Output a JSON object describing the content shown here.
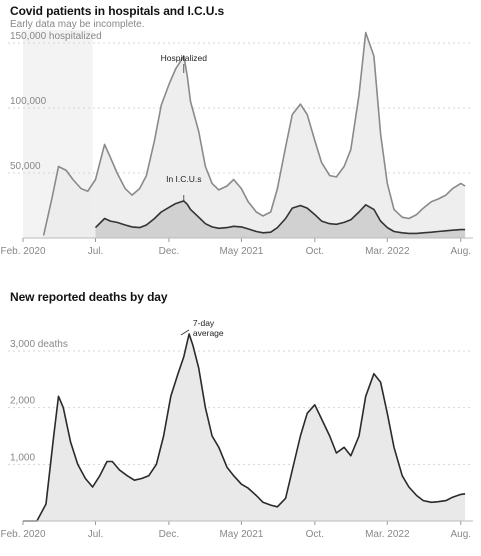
{
  "chart_data": [
    {
      "type": "area",
      "title": "Covid patients in hospitals and I.C.U.s",
      "subtitle": "Early data may be incomplete.",
      "xticks": [
        "Feb. 2020",
        "Jul.",
        "Dec.",
        "May 2021",
        "Oct.",
        "Mar. 2022",
        "Aug."
      ],
      "yticks": [
        "50,000",
        "100,000",
        "150,000 hospitalized"
      ],
      "ylim": [
        0,
        160000
      ],
      "grid": true,
      "annotations": [
        "Hospitalized",
        "In I.C.U.s"
      ],
      "x": [
        "2020-03-15",
        "2020-04-01",
        "2020-04-15",
        "2020-05-01",
        "2020-05-15",
        "2020-06-01",
        "2020-06-15",
        "2020-07-01",
        "2020-07-20",
        "2020-08-01",
        "2020-08-15",
        "2020-09-01",
        "2020-09-15",
        "2020-10-01",
        "2020-10-15",
        "2020-11-01",
        "2020-11-15",
        "2020-12-01",
        "2020-12-15",
        "2021-01-01",
        "2021-01-08",
        "2021-01-15",
        "2021-02-01",
        "2021-02-15",
        "2021-03-01",
        "2021-03-15",
        "2021-04-01",
        "2021-04-15",
        "2021-05-01",
        "2021-05-15",
        "2021-06-01",
        "2021-06-15",
        "2021-07-01",
        "2021-07-15",
        "2021-08-01",
        "2021-08-15",
        "2021-09-01",
        "2021-09-15",
        "2021-10-01",
        "2021-10-15",
        "2021-11-01",
        "2021-11-15",
        "2021-12-01",
        "2021-12-15",
        "2022-01-01",
        "2022-01-15",
        "2022-02-01",
        "2022-02-15",
        "2022-03-01",
        "2022-03-15",
        "2022-04-01",
        "2022-04-15",
        "2022-05-01",
        "2022-05-15",
        "2022-06-01",
        "2022-06-15",
        "2022-07-01",
        "2022-07-15",
        "2022-08-01",
        "2022-08-10"
      ],
      "series": [
        {
          "name": "Hospitalized",
          "values": [
            2000,
            30000,
            55000,
            52000,
            45000,
            38000,
            36000,
            45000,
            72000,
            62000,
            50000,
            38000,
            33000,
            38000,
            48000,
            75000,
            102000,
            118000,
            130000,
            140000,
            125000,
            105000,
            82000,
            55000,
            42000,
            37000,
            40000,
            45000,
            38000,
            28000,
            20000,
            17000,
            20000,
            38000,
            70000,
            95000,
            103000,
            95000,
            75000,
            58000,
            48000,
            47000,
            55000,
            68000,
            110000,
            158000,
            140000,
            80000,
            42000,
            22000,
            16000,
            15000,
            18000,
            23000,
            28000,
            30000,
            33000,
            38000,
            42000,
            40000
          ]
        },
        {
          "name": "In I.C.U.s",
          "values": [
            null,
            null,
            null,
            null,
            null,
            null,
            null,
            8000,
            15000,
            13000,
            12000,
            10000,
            8500,
            8000,
            10000,
            15000,
            20000,
            23500,
            26500,
            28500,
            26000,
            22000,
            16000,
            11000,
            8500,
            7500,
            8000,
            9000,
            8500,
            7000,
            5000,
            4000,
            4500,
            8000,
            15000,
            23000,
            25000,
            23000,
            18000,
            13000,
            11000,
            10500,
            12000,
            14000,
            20000,
            25500,
            22000,
            13000,
            8000,
            5000,
            4000,
            3500,
            3500,
            4000,
            4500,
            5000,
            5500,
            6000,
            6500,
            6500
          ]
        }
      ]
    },
    {
      "type": "area",
      "title": "New reported deaths by day",
      "xticks": [
        "Feb. 2020",
        "Jul.",
        "Dec.",
        "May 2021",
        "Oct.",
        "Mar. 2022",
        "Aug."
      ],
      "yticks": [
        "1,000",
        "2,000",
        "3,000 deaths"
      ],
      "ylim": [
        0,
        3600
      ],
      "grid": true,
      "annotations": [
        "7-day average"
      ],
      "x": [
        "2020-02-01",
        "2020-03-01",
        "2020-03-20",
        "2020-04-05",
        "2020-04-15",
        "2020-04-25",
        "2020-05-10",
        "2020-05-25",
        "2020-06-10",
        "2020-06-25",
        "2020-07-10",
        "2020-07-25",
        "2020-08-05",
        "2020-08-20",
        "2020-09-05",
        "2020-09-20",
        "2020-10-05",
        "2020-10-20",
        "2020-11-05",
        "2020-11-20",
        "2020-12-05",
        "2020-12-20",
        "2021-01-01",
        "2021-01-12",
        "2021-01-20",
        "2021-02-01",
        "2021-02-15",
        "2021-03-01",
        "2021-03-15",
        "2021-04-01",
        "2021-04-15",
        "2021-05-01",
        "2021-05-15",
        "2021-06-01",
        "2021-06-15",
        "2021-07-01",
        "2021-07-15",
        "2021-08-01",
        "2021-08-15",
        "2021-09-01",
        "2021-09-15",
        "2021-10-01",
        "2021-10-15",
        "2021-11-01",
        "2021-11-15",
        "2021-12-01",
        "2021-12-15",
        "2022-01-01",
        "2022-01-15",
        "2022-02-01",
        "2022-02-15",
        "2022-03-01",
        "2022-03-15",
        "2022-04-01",
        "2022-04-15",
        "2022-05-01",
        "2022-05-15",
        "2022-06-01",
        "2022-06-15",
        "2022-07-01",
        "2022-07-15",
        "2022-08-01",
        "2022-08-10"
      ],
      "series": [
        {
          "name": "7-day average",
          "values": [
            0,
            0,
            300,
            1500,
            2200,
            2000,
            1400,
            1000,
            750,
            600,
            800,
            1050,
            1050,
            900,
            800,
            720,
            750,
            800,
            1000,
            1500,
            2200,
            2600,
            2900,
            3300,
            3100,
            2700,
            2000,
            1500,
            1300,
            950,
            800,
            650,
            580,
            450,
            330,
            280,
            250,
            400,
            900,
            1500,
            1900,
            2050,
            1800,
            1500,
            1200,
            1300,
            1150,
            1500,
            2200,
            2600,
            2450,
            1900,
            1300,
            800,
            600,
            450,
            360,
            330,
            340,
            360,
            420,
            470,
            480
          ]
        }
      ]
    }
  ]
}
